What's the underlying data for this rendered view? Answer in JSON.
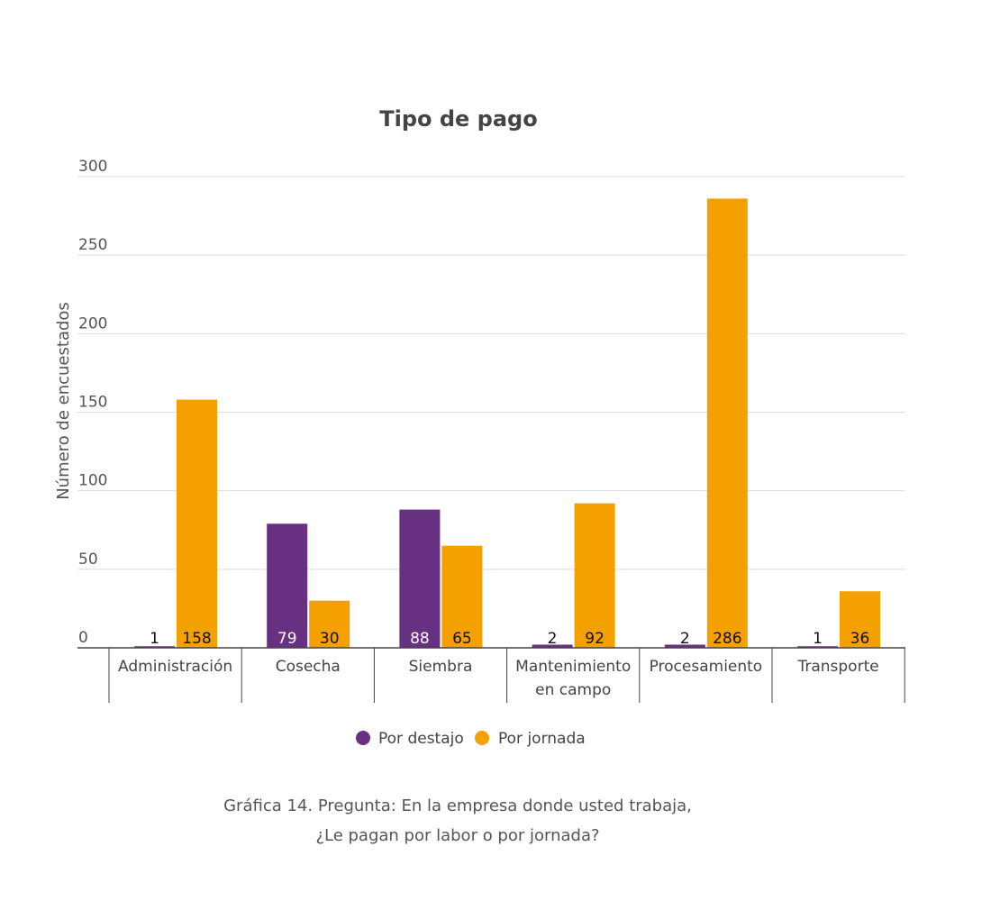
{
  "chart_data": {
    "type": "bar",
    "title": "Tipo de pago",
    "ylabel": "Número de encuestados",
    "xlabel": "",
    "ylim": [
      0,
      300
    ],
    "yticks": [
      0,
      50,
      100,
      150,
      200,
      250,
      300
    ],
    "grid": true,
    "legend_position": "bottom",
    "categories": [
      [
        "Administración"
      ],
      [
        "Cosecha"
      ],
      [
        "Siembra"
      ],
      [
        "Mantenimiento",
        "en campo"
      ],
      [
        "Procesamiento"
      ],
      [
        "Transporte"
      ]
    ],
    "series": [
      {
        "name": "Por destajo",
        "color": "#673081",
        "values": [
          1,
          79,
          88,
          2,
          2,
          1
        ]
      },
      {
        "name": "Por jornada",
        "color": "#f4a100",
        "values": [
          158,
          30,
          65,
          92,
          286,
          36
        ]
      }
    ]
  },
  "caption": {
    "line1": "Gráfica 14. Pregunta: En la empresa donde usted trabaja,",
    "line2": "¿Le pagan por labor o por jornada?"
  }
}
